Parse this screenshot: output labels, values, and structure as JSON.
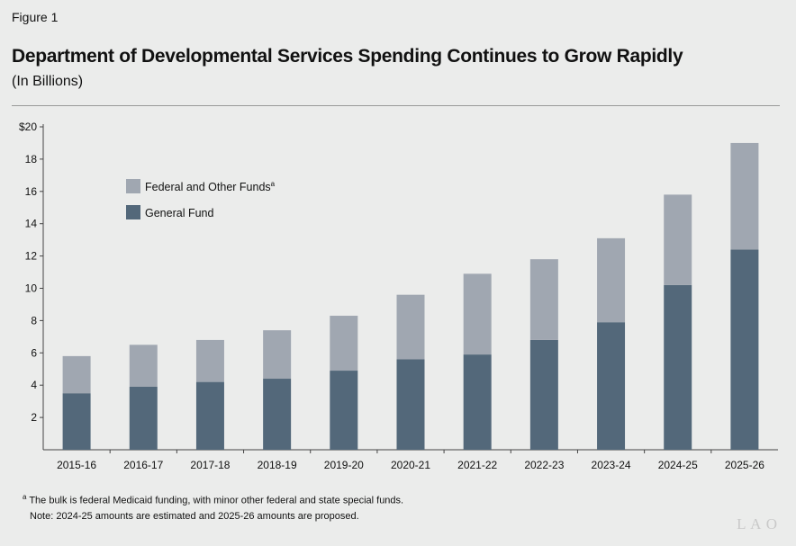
{
  "figure_label": "Figure 1",
  "title": "Department of Developmental Services Spending Continues to Grow Rapidly",
  "subtitle": "(In Billions)",
  "footnote_a": "The bulk is federal Medicaid funding, with minor other federal and state special funds.",
  "footnote_marker": "a",
  "note": "Note: 2024-25 amounts are estimated and 2025-26 amounts are proposed.",
  "logo": "LAO",
  "chart_data": {
    "type": "bar",
    "stacked": true,
    "categories": [
      "2015-16",
      "2016-17",
      "2017-18",
      "2018-19",
      "2019-20",
      "2020-21",
      "2021-22",
      "2022-23",
      "2023-24",
      "2024-25",
      "2025-26"
    ],
    "series": [
      {
        "name": "General Fund",
        "color": "#53687a",
        "values": [
          3.5,
          3.9,
          4.2,
          4.4,
          4.9,
          5.6,
          5.9,
          6.8,
          7.9,
          10.2,
          12.4
        ]
      },
      {
        "name": "Federal and Other Funds",
        "superscript": "a",
        "color": "#a0a7b1",
        "values": [
          2.3,
          2.6,
          2.6,
          3.0,
          3.4,
          4.0,
          5.0,
          5.0,
          5.2,
          5.6,
          6.6
        ]
      }
    ],
    "yticks": [
      "2",
      "4",
      "6",
      "8",
      "10",
      "12",
      "14",
      "16",
      "18",
      "$20"
    ],
    "ylim": [
      0,
      20
    ],
    "grid": false,
    "legend_position": "top-left"
  }
}
